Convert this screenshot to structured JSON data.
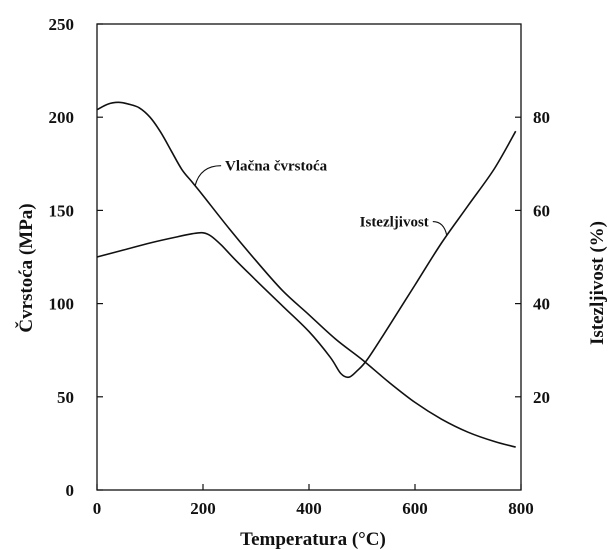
{
  "chart_data": {
    "type": "line",
    "xlabel": "Temperatura (°C)",
    "ylabel_left": "Čvrstoća   (MPa)",
    "ylabel_right": "Istezljivost   (%)",
    "xlim": [
      0,
      800
    ],
    "ylim_left": [
      0,
      250
    ],
    "ylim_right": [
      0,
      100
    ],
    "x_ticks": [
      "0",
      "200",
      "400",
      "600",
      "800"
    ],
    "y_left_ticks": [
      "0",
      "50",
      "100",
      "150",
      "200",
      "250"
    ],
    "y_right_ticks": [
      "20",
      "40",
      "60",
      "80"
    ],
    "grid": false,
    "series": [
      {
        "name": "Vlačna čvrstoća",
        "axis": "left",
        "points": [
          [
            0,
            204
          ],
          [
            20,
            207
          ],
          [
            40,
            208
          ],
          [
            60,
            207
          ],
          [
            80,
            205
          ],
          [
            100,
            200
          ],
          [
            120,
            192
          ],
          [
            140,
            182
          ],
          [
            160,
            172
          ],
          [
            180,
            165
          ],
          [
            200,
            158
          ],
          [
            250,
            140
          ],
          [
            300,
            123
          ],
          [
            350,
            107
          ],
          [
            400,
            94
          ],
          [
            450,
            81
          ],
          [
            500,
            70
          ],
          [
            550,
            58
          ],
          [
            600,
            47
          ],
          [
            650,
            38
          ],
          [
            700,
            31
          ],
          [
            750,
            26
          ],
          [
            790,
            23
          ]
        ]
      },
      {
        "name": "Istezljivost",
        "axis": "right",
        "points": [
          [
            0,
            50
          ],
          [
            50,
            51.5
          ],
          [
            100,
            53
          ],
          [
            150,
            54.3
          ],
          [
            180,
            55
          ],
          [
            200,
            55.2
          ],
          [
            215,
            54.5
          ],
          [
            235,
            52.5
          ],
          [
            260,
            49.5
          ],
          [
            300,
            45
          ],
          [
            350,
            39.5
          ],
          [
            400,
            34
          ],
          [
            440,
            28.5
          ],
          [
            460,
            25
          ],
          [
            475,
            24.2
          ],
          [
            490,
            25.5
          ],
          [
            510,
            28
          ],
          [
            550,
            35
          ],
          [
            600,
            44
          ],
          [
            650,
            53
          ],
          [
            700,
            61
          ],
          [
            750,
            69
          ],
          [
            790,
            77
          ]
        ]
      }
    ],
    "annotations": [
      {
        "text": "Vlačna čvrstoća",
        "target": "Vlačna čvrstoća",
        "at_x": 185
      },
      {
        "text": "Istezljivost",
        "target": "Istezljivost",
        "at_x": 660
      }
    ]
  }
}
